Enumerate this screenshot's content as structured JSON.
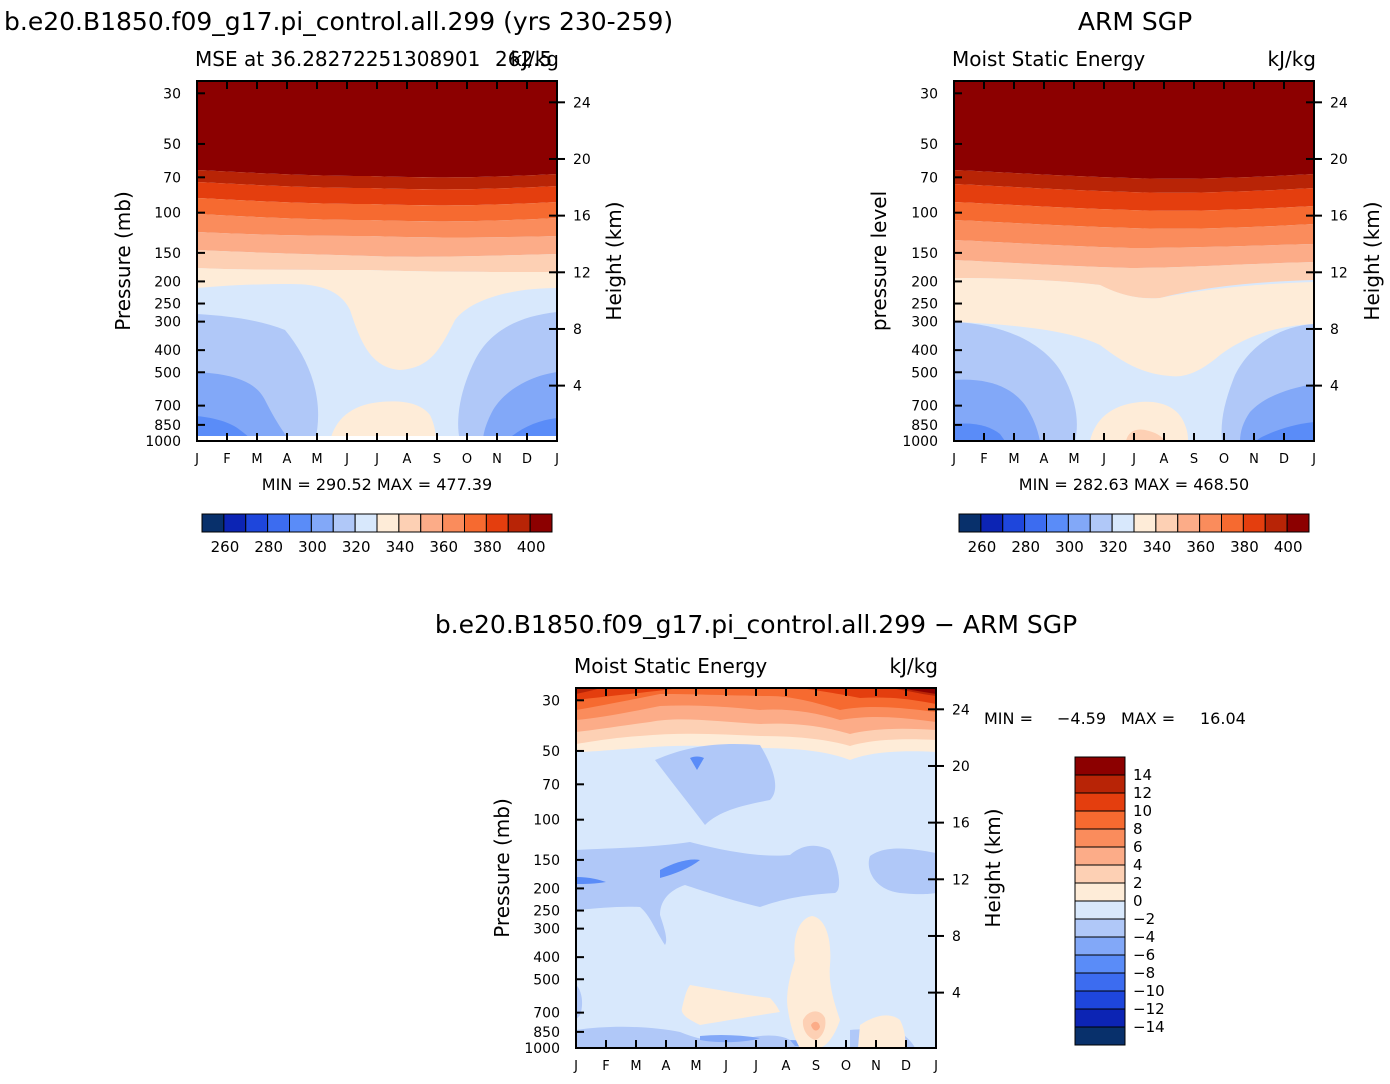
{
  "title_left": "b.e20.B1850.f09_g17.pi_control.all.299 (yrs 230-259)",
  "title_right": "ARM SGP",
  "title_diff": "b.e20.B1850.f09_g17.pi_control.all.299 − ARM SGP",
  "chart_data": [
    {
      "type": "heatmap",
      "id": "model",
      "subtitle_left": "MSE at 36.28272251308901",
      "subtitle_right": "kJ/kg",
      "overlap_text": "262.5",
      "ylabel": "Pressure (mb)",
      "ylabel_right": "Height (km)",
      "months": [
        "J",
        "F",
        "M",
        "A",
        "M",
        "J",
        "J",
        "A",
        "S",
        "O",
        "N",
        "D",
        "J"
      ],
      "pressure_ticks": [
        30,
        50,
        70,
        100,
        150,
        200,
        250,
        300,
        400,
        500,
        700,
        850,
        1000
      ],
      "height_ticks": [
        4,
        8,
        12,
        16,
        20,
        24
      ],
      "stats": "MIN = 290.52  MAX = 477.39",
      "colorbar_labels": [
        "260",
        "280",
        "300",
        "320",
        "340",
        "360",
        "380",
        "400"
      ],
      "colorbar_colors": [
        "#08306b",
        "#0c24b4",
        "#1e46dc",
        "#3c6cf0",
        "#5a8cf8",
        "#82a8f8",
        "#b0c8f8",
        "#d8e8fc",
        "#feecd8",
        "#fdd0b4",
        "#fcac88",
        "#fa8c5c",
        "#f66a30",
        "#e43e0e",
        "#b82406",
        "#8c0000"
      ]
    },
    {
      "type": "heatmap",
      "id": "obs",
      "subtitle_left": "Moist Static Energy",
      "subtitle_right": "kJ/kg",
      "ylabel": "pressure level",
      "ylabel_right": "Height (km)",
      "months": [
        "J",
        "F",
        "M",
        "A",
        "M",
        "J",
        "J",
        "A",
        "S",
        "O",
        "N",
        "D",
        "J"
      ],
      "pressure_ticks": [
        30,
        50,
        70,
        100,
        150,
        200,
        250,
        300,
        400,
        500,
        700,
        850,
        1000
      ],
      "height_ticks": [
        4,
        8,
        12,
        16,
        20,
        24
      ],
      "stats": "MIN = 282.63  MAX = 468.50",
      "colorbar_labels": [
        "260",
        "280",
        "300",
        "320",
        "340",
        "360",
        "380",
        "400"
      ],
      "colorbar_colors": [
        "#08306b",
        "#0c24b4",
        "#1e46dc",
        "#3c6cf0",
        "#5a8cf8",
        "#82a8f8",
        "#b0c8f8",
        "#d8e8fc",
        "#feecd8",
        "#fdd0b4",
        "#fcac88",
        "#fa8c5c",
        "#f66a30",
        "#e43e0e",
        "#b82406",
        "#8c0000"
      ]
    },
    {
      "type": "heatmap",
      "id": "diff",
      "subtitle_left": "Moist Static Energy",
      "subtitle_right": "kJ/kg",
      "ylabel": "Pressure (mb)",
      "ylabel_right": "Height (km)",
      "months": [
        "J",
        "F",
        "M",
        "A",
        "M",
        "J",
        "J",
        "A",
        "S",
        "O",
        "N",
        "D",
        "J"
      ],
      "pressure_ticks": [
        30,
        50,
        70,
        100,
        150,
        200,
        250,
        300,
        400,
        500,
        700,
        850,
        1000
      ],
      "height_ticks": [
        4,
        8,
        12,
        16,
        20,
        24
      ],
      "stats_label_min": "MIN =",
      "stats_min": "−4.59",
      "stats_label_max": "MAX =",
      "stats_max": "16.04",
      "colorbar_labels": [
        "14",
        "12",
        "10",
        "8",
        "6",
        "4",
        "2",
        "0",
        "−2",
        "−4",
        "−6",
        "−8",
        "−10",
        "−12",
        "−14"
      ],
      "colorbar_colors": [
        "#8c0000",
        "#b82406",
        "#e43e0e",
        "#f66a30",
        "#fa8c5c",
        "#fcac88",
        "#fdd0b4",
        "#feecd8",
        "#d8e8fc",
        "#b0c8f8",
        "#82a8f8",
        "#5a8cf8",
        "#3c6cf0",
        "#1e46dc",
        "#0c24b4",
        "#08306b"
      ]
    }
  ]
}
